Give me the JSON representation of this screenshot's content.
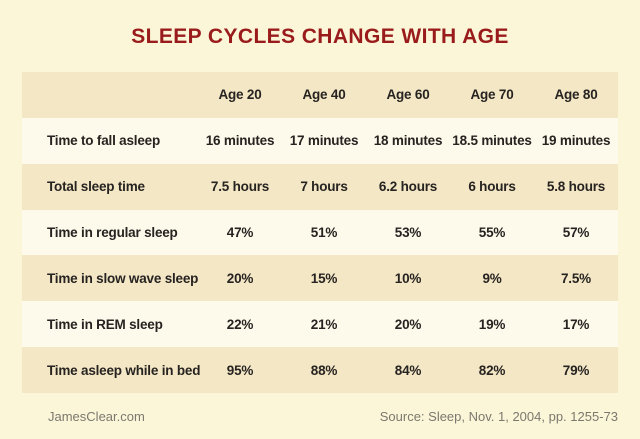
{
  "chart_data": {
    "type": "table",
    "title": "SLEEP CYCLES CHANGE WITH AGE",
    "columns": [
      "Age 20",
      "Age 40",
      "Age 60",
      "Age 70",
      "Age 80"
    ],
    "rows": [
      {
        "label": "Time to fall asleep",
        "values": [
          "16 minutes",
          "17 minutes",
          "18 minutes",
          "18.5 minutes",
          "19 minutes"
        ]
      },
      {
        "label": "Total sleep time",
        "values": [
          "7.5 hours",
          "7 hours",
          "6.2 hours",
          "6 hours",
          "5.8 hours"
        ]
      },
      {
        "label": "Time in regular sleep",
        "values": [
          "47%",
          "51%",
          "53%",
          "55%",
          "57%"
        ]
      },
      {
        "label": "Time in slow wave sleep",
        "values": [
          "20%",
          "15%",
          "10%",
          "9%",
          "7.5%"
        ]
      },
      {
        "label": "Time in REM sleep",
        "values": [
          "22%",
          "21%",
          "20%",
          "19%",
          "17%"
        ]
      },
      {
        "label": "Time asleep while in bed",
        "values": [
          "95%",
          "88%",
          "84%",
          "82%",
          "79%"
        ]
      }
    ]
  },
  "footer": {
    "site": "JamesClear.com",
    "source": "Source: Sleep, Nov. 1, 2004, pp. 1255-73"
  },
  "colors": {
    "page_background": "#FBF6D8",
    "row_dark": "#F4E7C6",
    "row_light": "#FDFAEC",
    "title_text": "#9A1B1B",
    "table_text": "#262320",
    "footer_text": "#7B786F"
  }
}
